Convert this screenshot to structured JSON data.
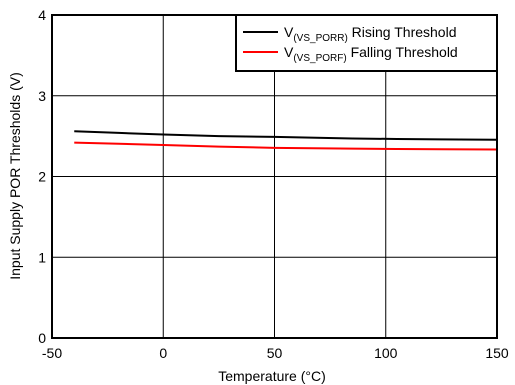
{
  "chart_data": {
    "type": "line",
    "xlabel": "Temperature (°C)",
    "ylabel": "Input Supply POR Thresholds (V)",
    "xlim": [
      -50,
      150
    ],
    "ylim": [
      0,
      4
    ],
    "xticks": [
      -50,
      0,
      50,
      100,
      150
    ],
    "yticks": [
      0,
      1,
      2,
      3,
      4
    ],
    "grid": true,
    "legend_position": "top-right",
    "series": [
      {
        "name_main": "V",
        "name_sub": "(VS_PORR)",
        "name_rest": " Rising Threshold",
        "color": "#000000",
        "x": [
          -40,
          -20,
          0,
          25,
          50,
          85,
          105,
          125,
          150
        ],
        "y": [
          2.56,
          2.54,
          2.52,
          2.5,
          2.49,
          2.47,
          2.465,
          2.46,
          2.455
        ]
      },
      {
        "name_main": "V",
        "name_sub": "(VS_PORF)",
        "name_rest": " Falling Threshold",
        "color": "#ff0000",
        "x": [
          -40,
          -20,
          0,
          25,
          50,
          85,
          105,
          125,
          150
        ],
        "y": [
          2.42,
          2.405,
          2.39,
          2.37,
          2.355,
          2.345,
          2.34,
          2.338,
          2.335
        ]
      }
    ]
  }
}
